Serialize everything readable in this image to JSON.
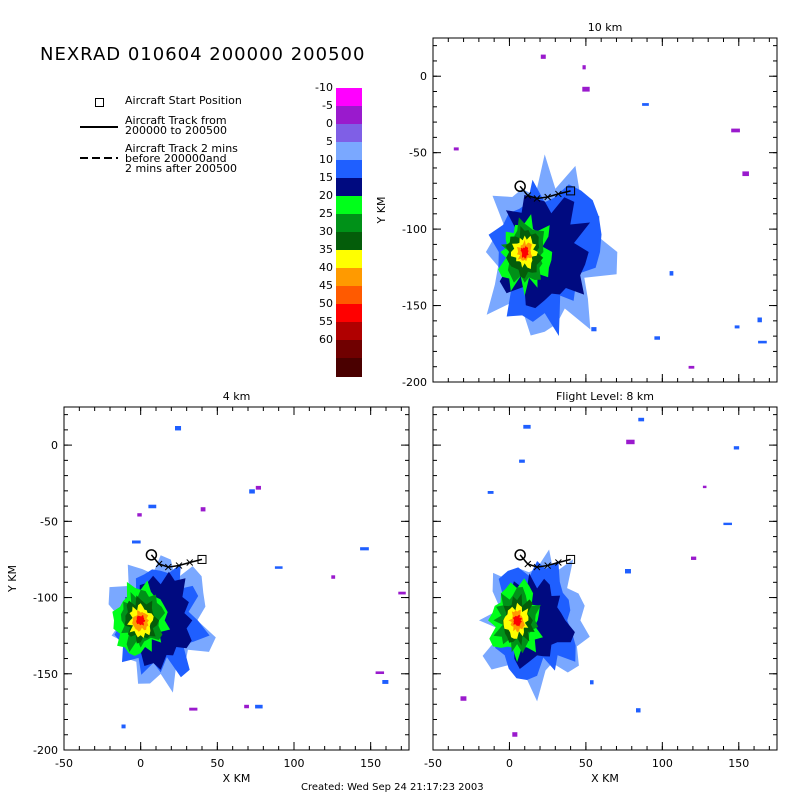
{
  "title": "NEXRAD 010604 200000 200500",
  "legend": {
    "start": "Aircraft Start Position",
    "track": "Aircraft Track from\n200000 to 200500",
    "track_ext": "Aircraft Track 2 mins\nbefore 200000and\n2 mins after 200500"
  },
  "colorbar": {
    "labels": [
      "-10",
      "-5",
      "0",
      "5",
      "10",
      "15",
      "20",
      "25",
      "30",
      "35",
      "40",
      "45",
      "50",
      "55",
      "60"
    ],
    "colors": [
      "#ff00ff",
      "#9a1acd",
      "#7f5fe6",
      "#7aa8ff",
      "#1f5fff",
      "#000a80",
      "#00ff1a",
      "#009118",
      "#045d0a",
      "#ffff00",
      "#ff9a00",
      "#ff5a00",
      "#ff0000",
      "#b00000",
      "#700000",
      "#4a0000"
    ]
  },
  "created": "Created: Wed Sep 24 21:17:23 2003",
  "chart_data": [
    {
      "type": "heatmap",
      "title": "10 km",
      "xlabel": "",
      "ylabel": "Y KM",
      "xlim": [
        -50,
        175
      ],
      "ylim": [
        -200,
        25
      ],
      "xticks": [],
      "yticks": [
        "0",
        "-50",
        "-100",
        "-150",
        "-200"
      ],
      "storm_center": [
        10,
        -115
      ],
      "aircraft_track": [
        [
          40,
          -75
        ],
        [
          32,
          -77
        ],
        [
          25,
          -79
        ],
        [
          18,
          -80
        ],
        [
          12,
          -78
        ],
        [
          7,
          -72
        ]
      ]
    },
    {
      "type": "heatmap",
      "title": "4 km",
      "xlabel": "X KM",
      "ylabel": "Y KM",
      "xlim": [
        -50,
        175
      ],
      "ylim": [
        -200,
        25
      ],
      "xticks": [
        "-50",
        "0",
        "50",
        "100",
        "150"
      ],
      "yticks": [
        "0",
        "-50",
        "-100",
        "-150",
        "-200"
      ],
      "storm_center": [
        0,
        -115
      ],
      "aircraft_track": [
        [
          40,
          -75
        ],
        [
          32,
          -77
        ],
        [
          25,
          -79
        ],
        [
          18,
          -80
        ],
        [
          12,
          -78
        ],
        [
          7,
          -72
        ]
      ]
    },
    {
      "type": "heatmap",
      "title": "Flight Level: 8 km",
      "xlabel": "X KM",
      "ylabel": "",
      "xlim": [
        -50,
        175
      ],
      "ylim": [
        -200,
        25
      ],
      "xticks": [
        "-50",
        "0",
        "50",
        "100",
        "150"
      ],
      "yticks": [],
      "storm_center": [
        5,
        -115
      ],
      "aircraft_track": [
        [
          40,
          -75
        ],
        [
          32,
          -77
        ],
        [
          25,
          -79
        ],
        [
          18,
          -80
        ],
        [
          12,
          -78
        ],
        [
          7,
          -72
        ]
      ]
    }
  ]
}
